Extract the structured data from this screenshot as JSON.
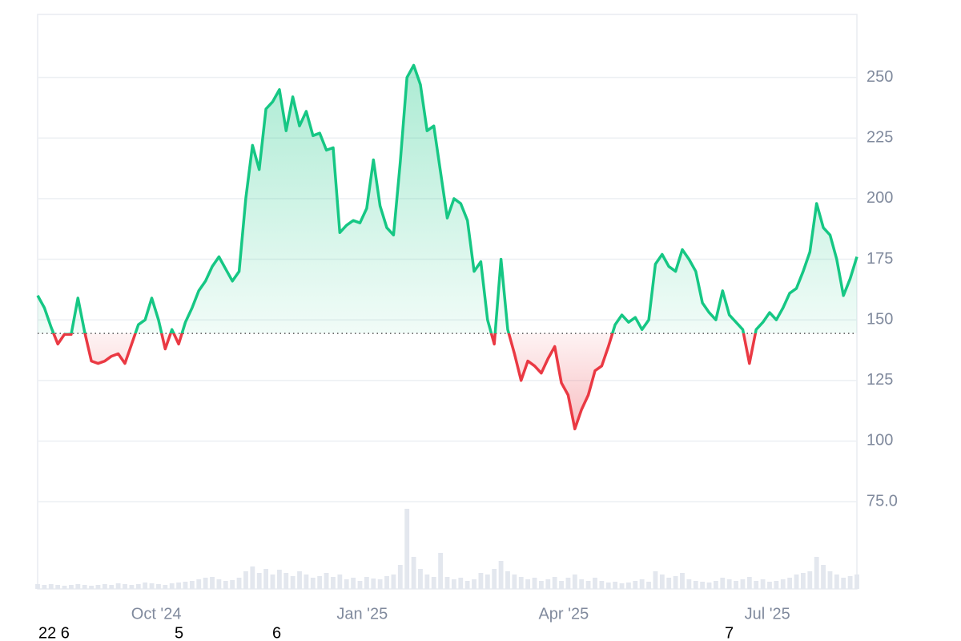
{
  "chart_data": {
    "type": "line",
    "x": [
      0,
      3,
      6,
      9,
      12,
      15,
      18,
      21,
      24,
      27,
      30,
      33,
      36,
      39,
      42,
      45,
      48,
      51,
      54,
      57,
      60,
      63,
      66,
      69,
      72,
      75,
      78,
      81,
      84,
      87,
      90,
      93,
      96,
      99,
      102,
      105,
      108,
      111,
      114,
      117,
      120,
      123,
      126,
      129,
      132,
      135,
      138,
      141,
      144,
      147,
      150,
      153,
      156,
      159,
      162,
      165,
      168,
      171,
      174,
      177,
      180,
      183,
      186,
      189,
      192,
      195,
      198,
      201,
      204,
      207,
      210,
      213,
      216,
      219,
      222,
      225,
      228,
      231,
      234,
      237,
      240,
      243,
      246,
      249,
      252,
      255,
      258,
      261,
      264,
      267,
      270,
      273,
      276,
      279,
      282,
      285,
      288,
      291,
      294,
      297,
      300,
      303,
      306,
      309,
      312,
      315,
      318,
      321,
      324,
      327,
      330,
      333,
      336,
      339,
      342,
      345,
      348,
      351,
      354,
      357,
      360,
      363,
      366
    ],
    "values": [
      160,
      155,
      147,
      140,
      144,
      144,
      159,
      145,
      133,
      132,
      133,
      135,
      136,
      132,
      140,
      148,
      150,
      159,
      150,
      138,
      146,
      140,
      149,
      155,
      162,
      166,
      172,
      176,
      171,
      166,
      170,
      200,
      222,
      212,
      237,
      240,
      245,
      228,
      242,
      230,
      236,
      226,
      227,
      220,
      221,
      186,
      189,
      191,
      190,
      196,
      216,
      197,
      188,
      185,
      215,
      250,
      255,
      247,
      228,
      230,
      211,
      192,
      200,
      198,
      191,
      170,
      174,
      150,
      140,
      175,
      146,
      136,
      125,
      133,
      131,
      128,
      134,
      139,
      124,
      119,
      105,
      113,
      119,
      129,
      131,
      139,
      148,
      152,
      149,
      151,
      146,
      150,
      173,
      177,
      172,
      170,
      179,
      175,
      170,
      157,
      153,
      150,
      162,
      152,
      149,
      146,
      132,
      146,
      149,
      153,
      150,
      155,
      161,
      163,
      170,
      178,
      198,
      188,
      185,
      175,
      160,
      167,
      176
    ],
    "volume": [
      6,
      5,
      6,
      5,
      4,
      5,
      6,
      5,
      4,
      5,
      6,
      5,
      7,
      6,
      5,
      6,
      8,
      7,
      6,
      5,
      7,
      8,
      9,
      10,
      12,
      14,
      15,
      12,
      10,
      11,
      14,
      22,
      28,
      20,
      25,
      18,
      24,
      20,
      16,
      22,
      18,
      14,
      16,
      20,
      15,
      18,
      12,
      14,
      10,
      15,
      13,
      12,
      16,
      18,
      30,
      100,
      40,
      25,
      18,
      15,
      45,
      15,
      12,
      14,
      10,
      12,
      20,
      18,
      25,
      35,
      22,
      18,
      15,
      12,
      14,
      10,
      12,
      15,
      10,
      14,
      18,
      12,
      10,
      14,
      10,
      8,
      9,
      7,
      8,
      10,
      12,
      9,
      22,
      18,
      14,
      16,
      20,
      12,
      10,
      9,
      8,
      10,
      14,
      12,
      10,
      12,
      15,
      10,
      12,
      9,
      10,
      12,
      14,
      18,
      20,
      22,
      40,
      30,
      22,
      18,
      14,
      16,
      18
    ],
    "xlim": [
      0,
      366
    ],
    "ylim": [
      39,
      276
    ],
    "vlim": [
      0,
      100
    ],
    "xticks": [
      {
        "value": 53,
        "label": "Oct '24"
      },
      {
        "value": 145,
        "label": "Jan '25"
      },
      {
        "value": 235,
        "label": "Apr '25"
      },
      {
        "value": 326,
        "label": "Jul '25"
      }
    ],
    "yticks": [
      {
        "value": 75,
        "label": "75.0"
      },
      100,
      125,
      150,
      175,
      200,
      225,
      250
    ],
    "baseline": 144.4,
    "colors": {
      "up": "#16c784",
      "down": "#ea3943",
      "volume": "#e3e7ee"
    },
    "grid": true
  },
  "footer_labels": [
    "22 6",
    "5",
    "6",
    "7"
  ]
}
